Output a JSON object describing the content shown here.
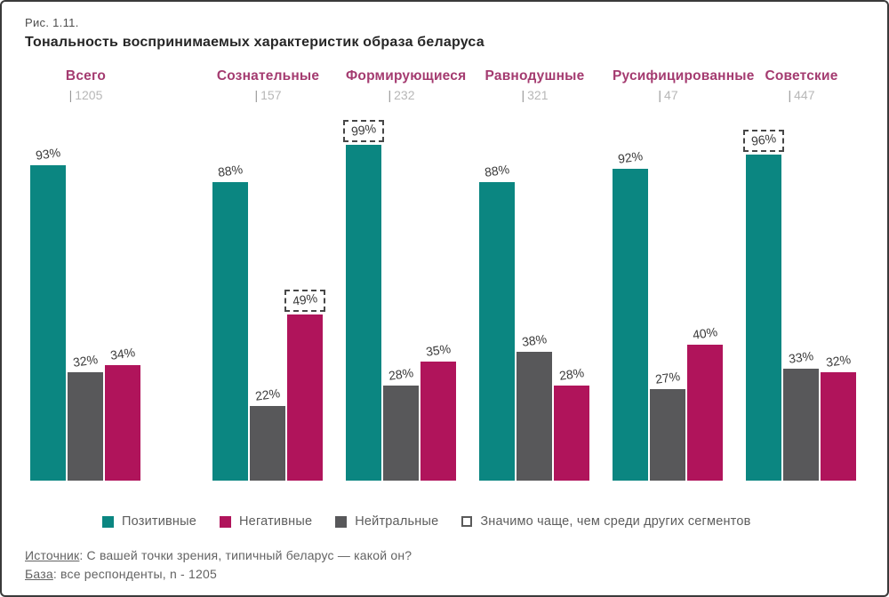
{
  "figure": {
    "number": "Рис. 1.11.",
    "title": "Тональность воспринимаемых характеристик образа беларуса"
  },
  "chart_data": {
    "type": "bar",
    "title": "Тональность воспринимаемых характеристик образа беларуса",
    "figure_number": "Рис. 1.11.",
    "unit": "%",
    "ylim": [
      0,
      100
    ],
    "grid": false,
    "categories": [
      "Всего",
      "Сознательные",
      "Формирующиеся",
      "Равнодушные",
      "Русифицированные",
      "Советские"
    ],
    "sample_sizes": [
      "1205",
      "157",
      "232",
      "321",
      "47",
      "447"
    ],
    "series": [
      {
        "key": "positive",
        "name": "Позитивные",
        "color": "#0B8681",
        "values": [
          93,
          88,
          99,
          88,
          92,
          96
        ]
      },
      {
        "key": "neutral",
        "name": "Нейтральные",
        "color": "#58585A",
        "values": [
          32,
          22,
          28,
          38,
          27,
          33
        ]
      },
      {
        "key": "negative",
        "name": "Негативные",
        "color": "#B0145B",
        "values": [
          34,
          49,
          35,
          28,
          40,
          32
        ]
      }
    ],
    "bar_order": [
      "positive",
      "neutral",
      "negative"
    ],
    "highlights": [
      {
        "category": "Сознательные",
        "series": "negative",
        "value": 49
      },
      {
        "category": "Формирующиеся",
        "series": "positive",
        "value": 99
      },
      {
        "category": "Советские",
        "series": "positive",
        "value": 96
      }
    ],
    "highlight_note": "Значимо чаще, чем среди других сегментов",
    "legend_position": "bottom",
    "legend_order": [
      "Позитивные",
      "Негативные",
      "Нейтральные"
    ]
  },
  "legend": {
    "items": [
      {
        "key": "positive",
        "label": "Позитивные",
        "color": "#0B8681"
      },
      {
        "key": "negative",
        "label": "Негативные",
        "color": "#B0145B"
      },
      {
        "key": "neutral",
        "label": "Нейтральные",
        "color": "#58585A"
      }
    ],
    "note": "Значимо чаще, чем среди других сегментов"
  },
  "footer": {
    "source_label": "Источник",
    "source_rest": ": С вашей точки зрения, типичный беларус — какой он?",
    "base_label": "База",
    "base_rest": ": все респонденты, n - 1205"
  }
}
